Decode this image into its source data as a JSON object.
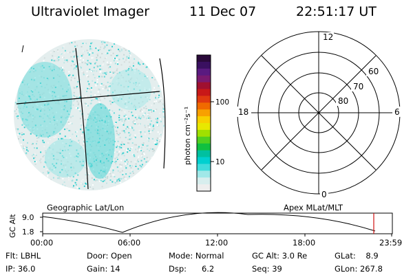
{
  "header": {
    "instrument": "Ultraviolet Imager",
    "date": "11 Dec 07",
    "time": "22:51:17 UT"
  },
  "colorbar": {
    "unit_label": "photon cm⁻²s⁻¹",
    "tick_100": "100",
    "tick_10": "10",
    "colors": [
      "#2a0a3a",
      "#3a1060",
      "#5a1a80",
      "#7a1a70",
      "#a01030",
      "#c81818",
      "#e03a10",
      "#f06a00",
      "#f8a000",
      "#f8d000",
      "#e8e800",
      "#a0e000",
      "#50d020",
      "#10c040",
      "#00c0a0",
      "#00d0d0",
      "#40dcdc",
      "#a0e8e8",
      "#d8eeee",
      "#eeeeee"
    ]
  },
  "polar_plot": {
    "mlt_top": "12",
    "mlt_left": "18",
    "mlt_right": "6",
    "mlt_bottom": "0",
    "lat_60": "60",
    "lat_70": "70",
    "lat_80": "80"
  },
  "altitude_panel": {
    "left_title": "Geographic Lat/Lon",
    "right_title": "Apex  MLat/MLT",
    "y_axis_label": "GC Alt",
    "y_max": "9.0",
    "y_min": "1.8",
    "x_ticks": [
      "00:00",
      "06:00",
      "12:00",
      "18:00",
      "23:59"
    ]
  },
  "status": {
    "filter": "Flt: LBHL",
    "door": "Door: Open",
    "mode": "Mode: Normal",
    "gc_alt": "GC Alt: 3.0 Re",
    "glat": "GLat:    8.9",
    "ip": "IP: 36.0",
    "gain": "Gain: 14",
    "dsp": "Dsp:      6.2",
    "seq": "Seq: 39",
    "glon": "GLon: 267.8"
  }
}
